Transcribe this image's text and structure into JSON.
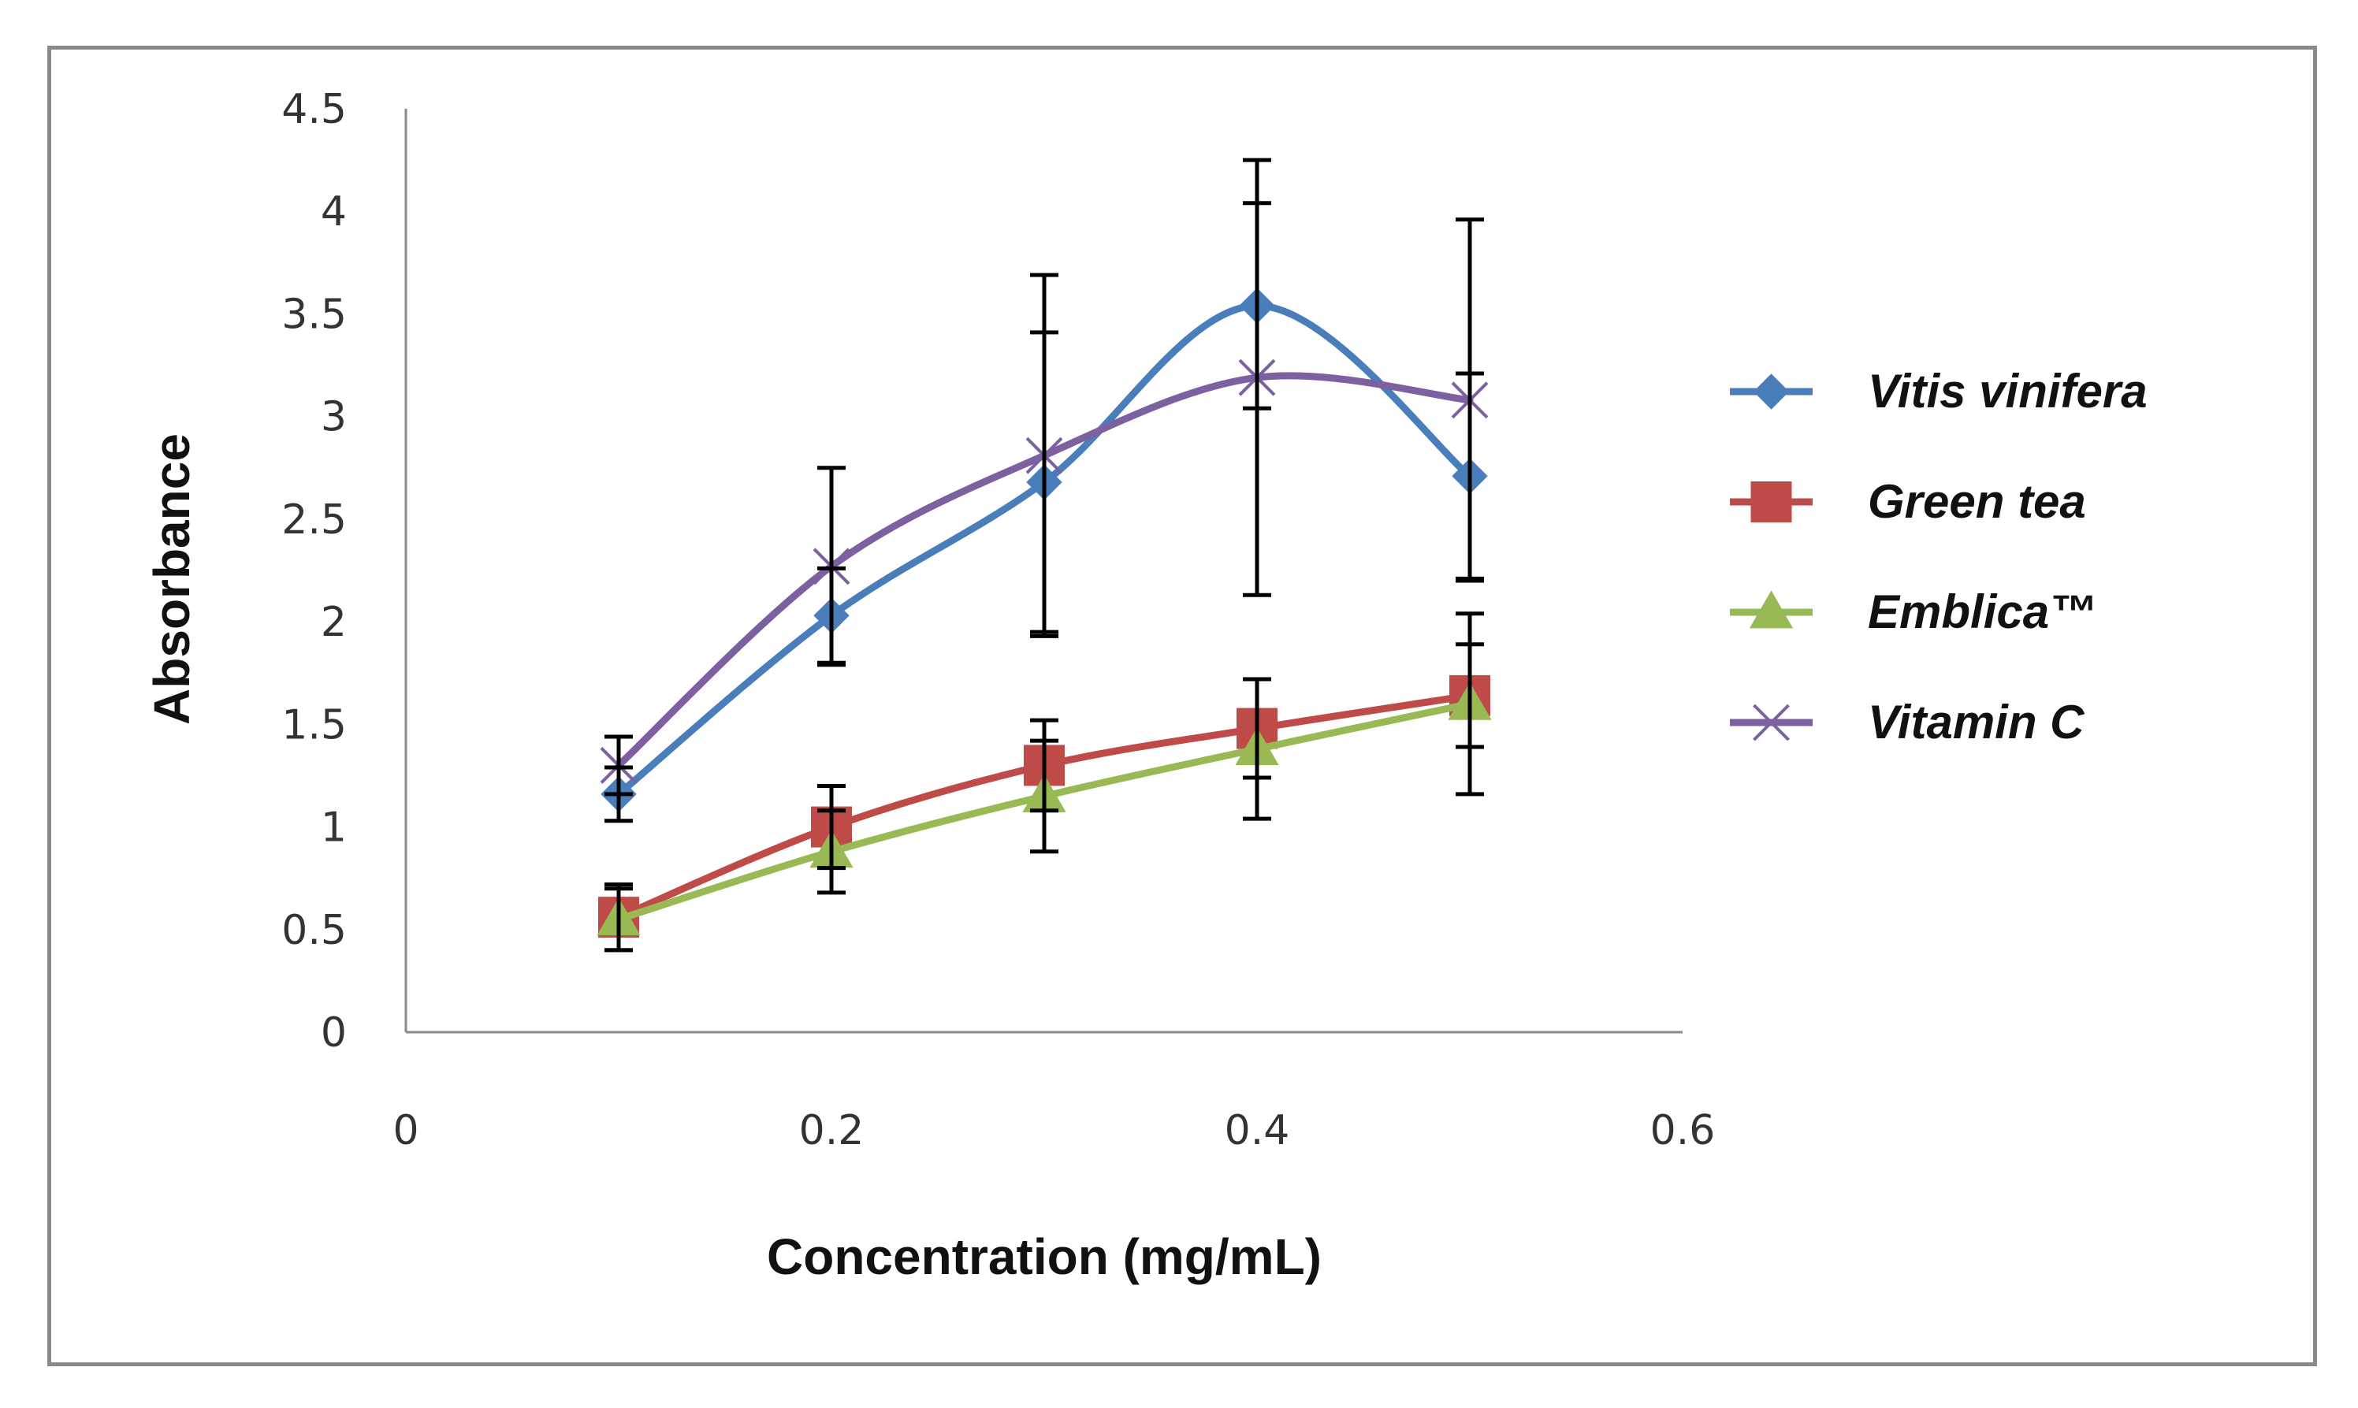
{
  "chart_data": {
    "type": "line",
    "title": "",
    "xlabel": "Concentration (mg/mL)",
    "ylabel": "Absorbance",
    "xlim": [
      0,
      0.6
    ],
    "ylim": [
      0,
      4.5
    ],
    "xticks": [
      {
        "value": 0,
        "label": "0"
      },
      {
        "value": 0.2,
        "label": "0.2"
      },
      {
        "value": 0.4,
        "label": "0.4"
      },
      {
        "value": 0.6,
        "label": "0.6"
      }
    ],
    "yticks": [
      {
        "value": 0,
        "label": "0"
      },
      {
        "value": 0.5,
        "label": "0.5"
      },
      {
        "value": 1,
        "label": "1"
      },
      {
        "value": 1.5,
        "label": "1.5"
      },
      {
        "value": 2,
        "label": "2"
      },
      {
        "value": 2.5,
        "label": "2.5"
      },
      {
        "value": 3,
        "label": "3"
      },
      {
        "value": 3.5,
        "label": "3.5"
      },
      {
        "value": 4,
        "label": "4"
      },
      {
        "value": 4.5,
        "label": "4.5"
      }
    ],
    "grid": false,
    "legend_position": "right",
    "series": [
      {
        "name": "Vitis vinifera",
        "color": "#4a7ebb",
        "marker": "diamond",
        "x": [
          0.1,
          0.2,
          0.3,
          0.4,
          0.5
        ],
        "y": [
          1.16,
          2.03,
          2.68,
          3.54,
          2.71
        ],
        "error": [
          0.13,
          0.23,
          0.73,
          0.5,
          0.5
        ]
      },
      {
        "name": "Green tea",
        "color": "#be4b48",
        "marker": "square",
        "x": [
          0.1,
          0.2,
          0.3,
          0.4,
          0.5
        ],
        "y": [
          0.56,
          1.0,
          1.3,
          1.48,
          1.64
        ],
        "error": [
          0.16,
          0.2,
          0.22,
          0.24,
          0.25
        ]
      },
      {
        "name": "Emblica™",
        "color": "#98b954",
        "marker": "triangle",
        "x": [
          0.1,
          0.2,
          0.3,
          0.4,
          0.5
        ],
        "y": [
          0.55,
          0.88,
          1.15,
          1.38,
          1.6
        ],
        "error": [
          0.15,
          0.2,
          0.27,
          0.34,
          0.44
        ]
      },
      {
        "name": "Vitamin C",
        "color": "#7d60a0",
        "marker": "x",
        "x": [
          0.1,
          0.2,
          0.3,
          0.4,
          0.5
        ],
        "y": [
          1.3,
          2.27,
          2.81,
          3.19,
          3.08
        ],
        "error": [
          0.14,
          0.48,
          0.88,
          1.06,
          0.88
        ]
      }
    ]
  }
}
